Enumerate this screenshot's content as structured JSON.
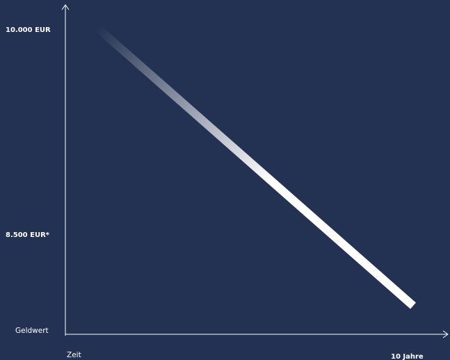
{
  "chart_data": {
    "type": "line",
    "title": "",
    "xlabel": "Zeit",
    "ylabel": "Geldwert",
    "x_start_label": "Zeit",
    "x_end_label": "10 Jahre",
    "y_tick_labels": [
      "10.000 EUR",
      "8.500 EUR*"
    ],
    "series": [
      {
        "x": [
          0,
          10
        ],
        "y": [
          10000,
          8500
        ]
      }
    ],
    "xlim": [
      0,
      10
    ],
    "colors": {
      "background": "#233252",
      "line": "#ffffff",
      "axis": "#ffffff"
    },
    "grid": false
  }
}
